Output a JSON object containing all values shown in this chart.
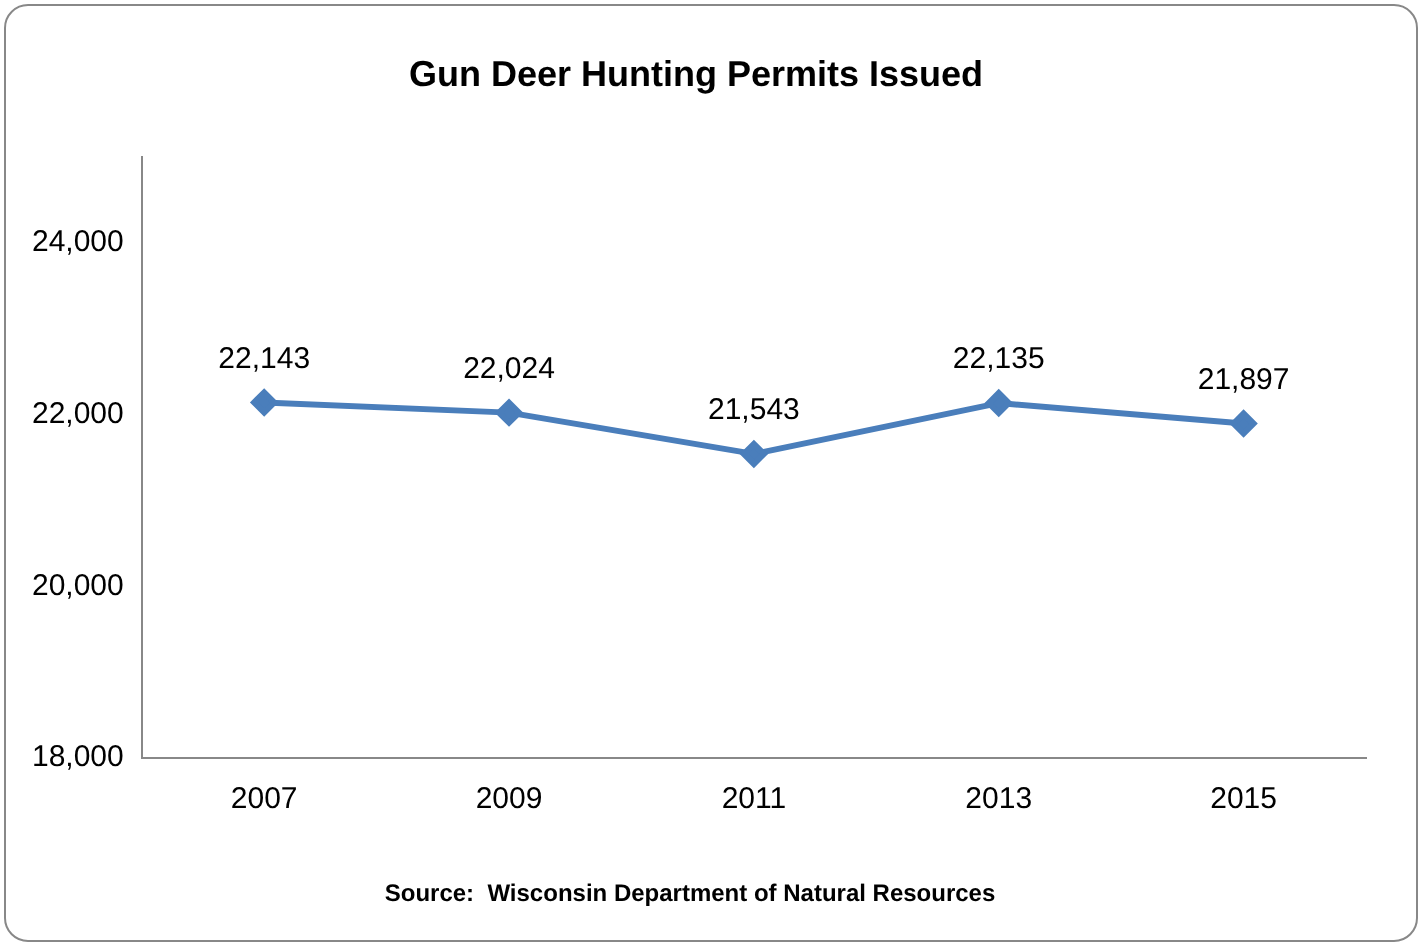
{
  "chart_data": {
    "type": "line",
    "title": "Gun Deer Hunting Permits Issued",
    "categories": [
      "2007",
      "2009",
      "2011",
      "2013",
      "2015"
    ],
    "values": [
      22143,
      22024,
      21543,
      22135,
      21897
    ],
    "value_labels": [
      "22,143",
      "22,024",
      "21,543",
      "22,135",
      "21,897"
    ],
    "color": "#4a7ebb",
    "marker": "diamond",
    "line_style": "solid",
    "grid": false,
    "legend": false,
    "ylim": [
      18000,
      25000
    ],
    "yticks": [
      {
        "value": 18000,
        "label": "18,000"
      },
      {
        "value": 20000,
        "label": "20,000"
      },
      {
        "value": 22000,
        "label": "22,000"
      },
      {
        "value": 24000,
        "label": "24,000"
      }
    ],
    "annotations": [
      "Source:  Wisconsin Department of Natural Resources"
    ]
  }
}
